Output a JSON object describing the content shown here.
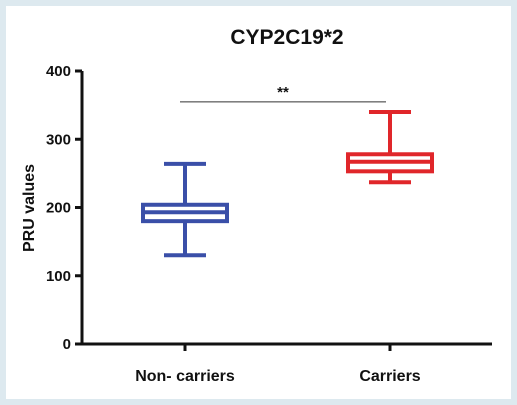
{
  "chart_data": {
    "type": "box",
    "title": "CYP2C19*2",
    "xlabel": "",
    "ylabel": "PRU values",
    "ylim": [
      0,
      400
    ],
    "yticks": [
      0,
      100,
      200,
      300,
      400
    ],
    "categories": [
      "Non- carriers",
      "Carriers"
    ],
    "boxes": [
      {
        "category": "Non- carriers",
        "min": 130,
        "q1": 180,
        "median": 193,
        "q3": 204,
        "max": 264,
        "color": "#3a4fa8"
      },
      {
        "category": "Carriers",
        "min": 237,
        "q1": 253,
        "median": 267,
        "q3": 278,
        "max": 340,
        "color": "#e0262a"
      }
    ],
    "significance": {
      "label": "**",
      "between": [
        "Non- carriers",
        "Carriers"
      ],
      "y": 362
    },
    "grid": false,
    "background_color": "#dde9ef"
  }
}
